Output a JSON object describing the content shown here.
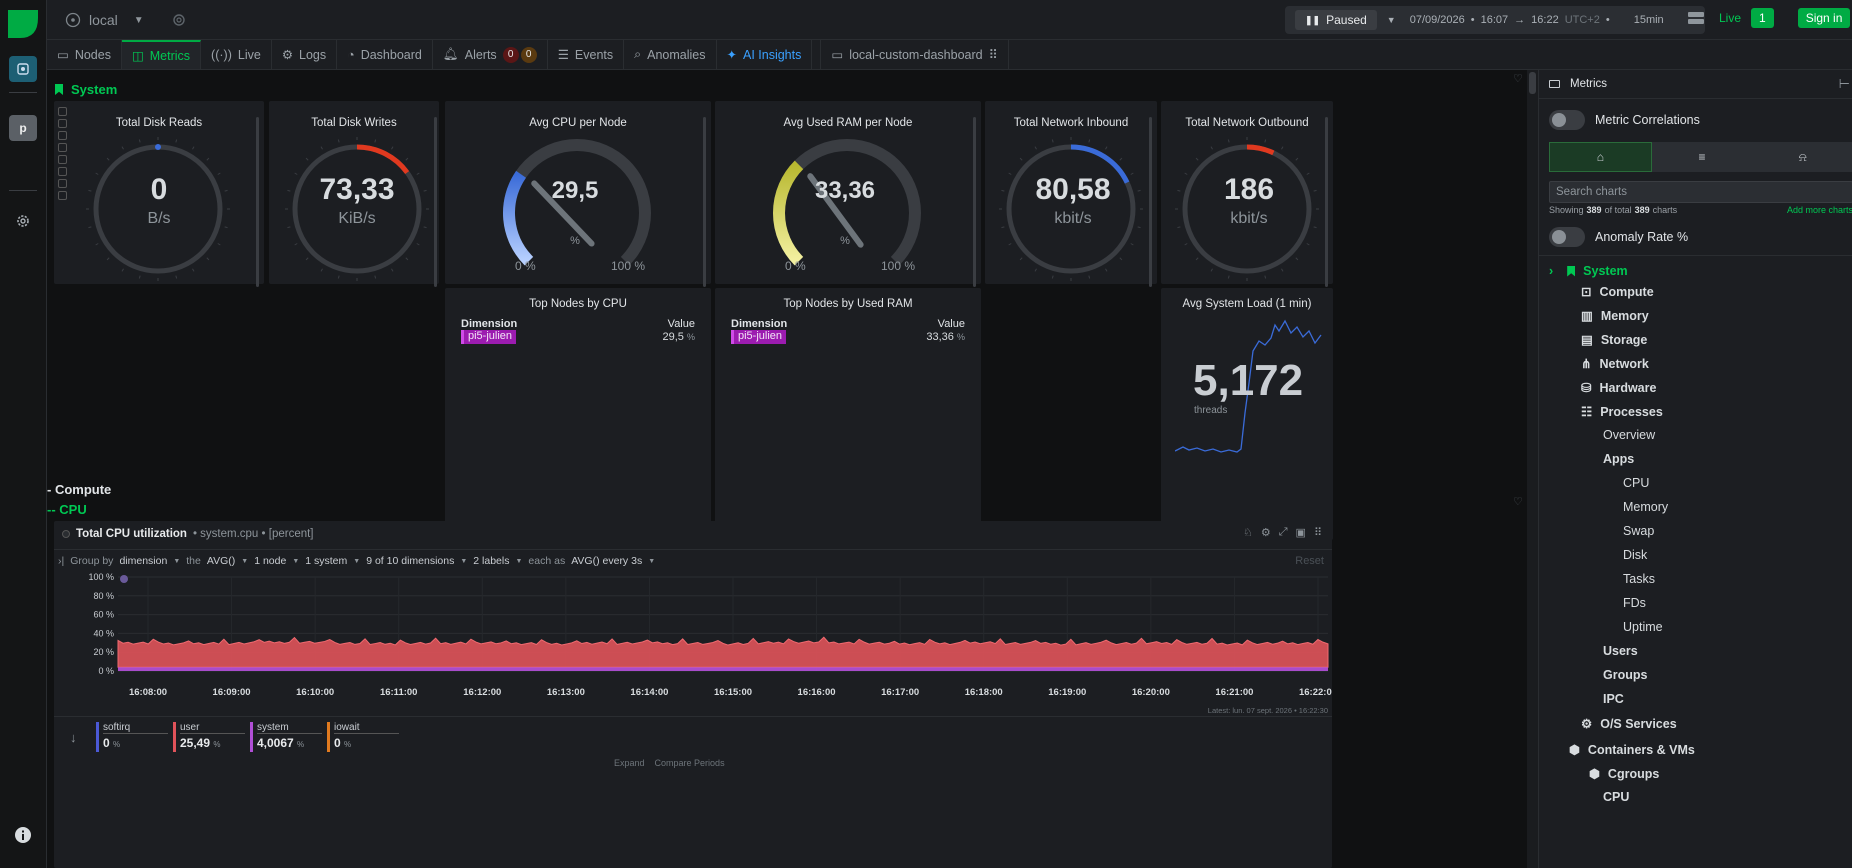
{
  "topbar": {
    "space": "local",
    "paused_label": "Paused",
    "date": "07/09/2026",
    "from": "16:07",
    "to": "16:22",
    "tz": "UTC+2",
    "duration": "15min",
    "live_label": "Live",
    "live_count": "1",
    "signin_label": "Sign in"
  },
  "rail": {
    "avatar_letter": "p"
  },
  "tabs": {
    "nodes": "Nodes",
    "metrics": "Metrics",
    "live": "Live",
    "logs": "Logs",
    "dashboard": "Dashboard",
    "alerts": "Alerts",
    "alerts_critical": "0",
    "alerts_warning": "0",
    "events": "Events",
    "anomalies": "Anomalies",
    "ai": "AI Insights",
    "custom": "local-custom-dashboard"
  },
  "system": {
    "title": "System",
    "gauges": [
      {
        "title": "Total Disk Reads",
        "value": "0",
        "unit": "B/s",
        "fraction": 0.0,
        "color": "#3a6bd8"
      },
      {
        "title": "Total Disk Writes",
        "value": "73,33",
        "unit": "KiB/s",
        "fraction": 0.15,
        "color": "#e0391f"
      },
      {
        "title": "Total Network Inbound",
        "value": "80,58",
        "unit": "kbit/s",
        "fraction": 0.18,
        "color": "#3a6bd8"
      },
      {
        "title": "Total Network Outbound",
        "value": "186",
        "unit": "kbit/s",
        "fraction": 0.07,
        "color": "#e0391f"
      }
    ],
    "cpu_gauge": {
      "title": "Avg CPU per Node",
      "value": "29,5",
      "unit": "%",
      "min": "0 %",
      "max": "100 %",
      "percent": 29.5
    },
    "ram_gauge": {
      "title": "Avg Used RAM per Node",
      "value": "33,36",
      "unit": "%",
      "min": "0 %",
      "max": "100 %",
      "percent": 33.36
    },
    "top_cpu": {
      "title": "Top Nodes by CPU",
      "col1": "Dimension",
      "col2": "Value",
      "node": "pi5-julien",
      "value": "29,5",
      "unit": "%"
    },
    "top_ram": {
      "title": "Top Nodes by Used RAM",
      "col1": "Dimension",
      "col2": "Value",
      "node": "pi5-julien",
      "value": "33,36",
      "unit": "%"
    },
    "load": {
      "title": "Avg System Load (1 min)",
      "value": "5,172",
      "unit": "threads"
    }
  },
  "compute": {
    "title": "- Compute",
    "cpu_title": "-- CPU",
    "chart_title": "Total CPU utilization",
    "chart_ctx": "• system.cpu • [percent]",
    "group_by": "Group by",
    "group_val": "dimension",
    "the": "the",
    "agg": "AVG()",
    "nodes": "1 node",
    "systems": "1 system",
    "dims": "9 of 10 dimensions",
    "labels": "2 labels",
    "each_as": "each as",
    "every": "AVG() every 3s",
    "reset": "Reset",
    "latest": "Latest: lun. 07 sept. 2026 • 16:22:30",
    "expand": "Expand",
    "compare": "Compare Periods"
  },
  "chart_data": {
    "type": "area",
    "title": "Total CPU utilization",
    "ylabel": "",
    "ylim": [
      0,
      100
    ],
    "y_ticks": [
      "100 %",
      "80 %",
      "60 %",
      "40 %",
      "20 %",
      "0 %"
    ],
    "x": [
      "16:08:00",
      "16:09:00",
      "16:10:00",
      "16:11:00",
      "16:12:00",
      "16:13:00",
      "16:14:00",
      "16:15:00",
      "16:16:00",
      "16:17:00",
      "16:18:00",
      "16:19:00",
      "16:20:00",
      "16:21:00",
      "16:22:00"
    ],
    "series": [
      {
        "name": "softirq",
        "values": [
          0,
          0,
          0,
          0,
          0,
          0,
          0,
          0,
          0,
          0,
          0,
          0,
          0,
          0,
          0
        ],
        "color": "#4b59d6"
      },
      {
        "name": "user",
        "values": [
          26,
          25,
          27,
          25,
          26,
          25,
          26,
          25,
          27,
          25,
          26,
          25,
          26,
          25,
          25.49
        ],
        "color": "#e0535a"
      },
      {
        "name": "system",
        "values": [
          4,
          4,
          4,
          4,
          4,
          4,
          4,
          4,
          4,
          4,
          4,
          4,
          4,
          4,
          4.0067
        ],
        "color": "#b04fd6"
      },
      {
        "name": "iowait",
        "values": [
          0,
          0,
          0,
          0,
          0,
          0,
          0,
          0,
          0,
          0,
          0,
          0,
          0,
          0,
          0
        ],
        "color": "#e07a1f"
      }
    ],
    "legend_values": [
      "0",
      "25,49",
      "4,0067",
      "0"
    ],
    "legend_unit": "%"
  },
  "panel": {
    "title": "Metrics",
    "correlations": "Metric Correlations",
    "search_placeholder": "Search charts",
    "showing_prefix": "Showing",
    "showing_count": "389",
    "showing_mid": "of total",
    "showing_total": "389",
    "showing_suffix": "charts",
    "add_more": "Add more charts",
    "anomaly": "Anomaly Rate %",
    "tree": {
      "system": "System",
      "compute": "Compute",
      "memory": "Memory",
      "storage": "Storage",
      "network": "Network",
      "hardware": "Hardware",
      "processes": "Processes",
      "overview": "Overview",
      "apps": "Apps",
      "apps_cpu": "CPU",
      "apps_memory": "Memory",
      "apps_swap": "Swap",
      "apps_disk": "Disk",
      "apps_tasks": "Tasks",
      "apps_fds": "FDs",
      "apps_uptime": "Uptime",
      "users": "Users",
      "groups": "Groups",
      "ipc": "IPC",
      "services": "O/S Services",
      "containers": "Containers & VMs",
      "cgroups": "Cgroups",
      "cg_cpu": "CPU"
    }
  }
}
